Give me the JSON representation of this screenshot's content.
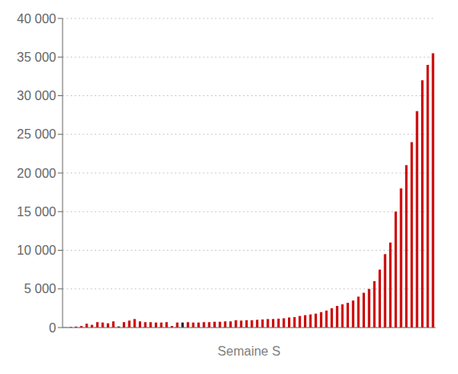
{
  "chart_data": {
    "type": "bar",
    "title": "",
    "xlabel": "Semaine S",
    "ylabel": "",
    "categories": [
      null,
      null,
      null,
      null,
      null,
      null,
      null,
      null,
      null,
      null,
      null,
      null,
      null,
      null,
      null,
      null,
      null,
      null,
      null,
      null,
      null,
      null,
      null,
      null,
      null,
      null,
      null,
      null,
      null,
      null,
      null,
      null,
      null,
      null,
      null,
      null,
      null,
      null,
      null,
      null,
      null,
      null,
      null,
      null,
      null,
      null,
      null,
      null,
      null,
      null,
      null,
      null,
      null,
      null,
      null,
      null,
      null,
      null,
      null,
      null,
      null,
      null,
      null,
      null,
      null,
      null,
      null,
      null,
      null,
      null
    ],
    "values": [
      30,
      80,
      130,
      200,
      500,
      350,
      700,
      650,
      550,
      800,
      150,
      700,
      900,
      1100,
      800,
      700,
      700,
      650,
      650,
      700,
      200,
      650,
      650,
      700,
      650,
      650,
      700,
      700,
      750,
      750,
      800,
      800,
      950,
      900,
      950,
      950,
      1000,
      1050,
      1100,
      1100,
      1150,
      1200,
      1300,
      1350,
      1500,
      1600,
      1700,
      1800,
      2000,
      2200,
      2500,
      2800,
      3000,
      3200,
      3500,
      4000,
      4500,
      5000,
      6000,
      7500,
      9500,
      11000,
      15000,
      18000,
      21000,
      24000,
      28000,
      32000,
      34000,
      35500
    ],
    "colors": [
      "#cc0000",
      "#cc0000",
      "#cc0000",
      "#cc0000",
      "#cc0000",
      "#cc0000",
      "#cc0000",
      "#cc0000",
      "#cc0000",
      "#cc0000",
      "#222222",
      "#cc0000",
      "#cc0000",
      "#cc0000",
      "#cc0000",
      "#cc0000",
      "#cc0000",
      "#cc0000",
      "#cc0000",
      "#cc0000",
      "#cc0000",
      "#cc0000",
      "#222222",
      "#cc0000",
      "#cc0000",
      "#cc0000",
      "#cc0000",
      "#cc0000",
      "#cc0000",
      "#cc0000",
      "#cc0000",
      "#cc0000",
      "#cc0000",
      "#cc0000",
      "#cc0000",
      "#cc0000",
      "#cc0000",
      "#cc0000",
      "#cc0000",
      "#cc0000",
      "#cc0000",
      "#cc0000",
      "#cc0000",
      "#cc0000",
      "#cc0000",
      "#cc0000",
      "#cc0000",
      "#cc0000",
      "#cc0000",
      "#cc0000",
      "#cc0000",
      "#cc0000",
      "#cc0000",
      "#cc0000",
      "#cc0000",
      "#cc0000",
      "#cc0000",
      "#cc0000",
      "#cc0000",
      "#cc0000",
      "#cc0000",
      "#cc0000",
      "#cc0000",
      "#cc0000",
      "#cc0000",
      "#cc0000",
      "#cc0000",
      "#cc0000",
      "#cc0000",
      "#cc0000"
    ],
    "ylim": [
      0,
      40000
    ],
    "yticks": [
      0,
      {
        "value": 5000,
        "label": "5 000"
      },
      {
        "value": 10000,
        "label": "10 000"
      },
      {
        "value": 15000,
        "label": "15 000"
      },
      {
        "value": 20000,
        "label": "20 000"
      },
      {
        "value": 25000,
        "label": "25 000"
      },
      {
        "value": 30000,
        "label": "30 000"
      },
      {
        "value": 35000,
        "label": "35 000"
      },
      {
        "value": 40000,
        "label": "40 000"
      }
    ],
    "grid": true,
    "tick_labels": "y"
  }
}
